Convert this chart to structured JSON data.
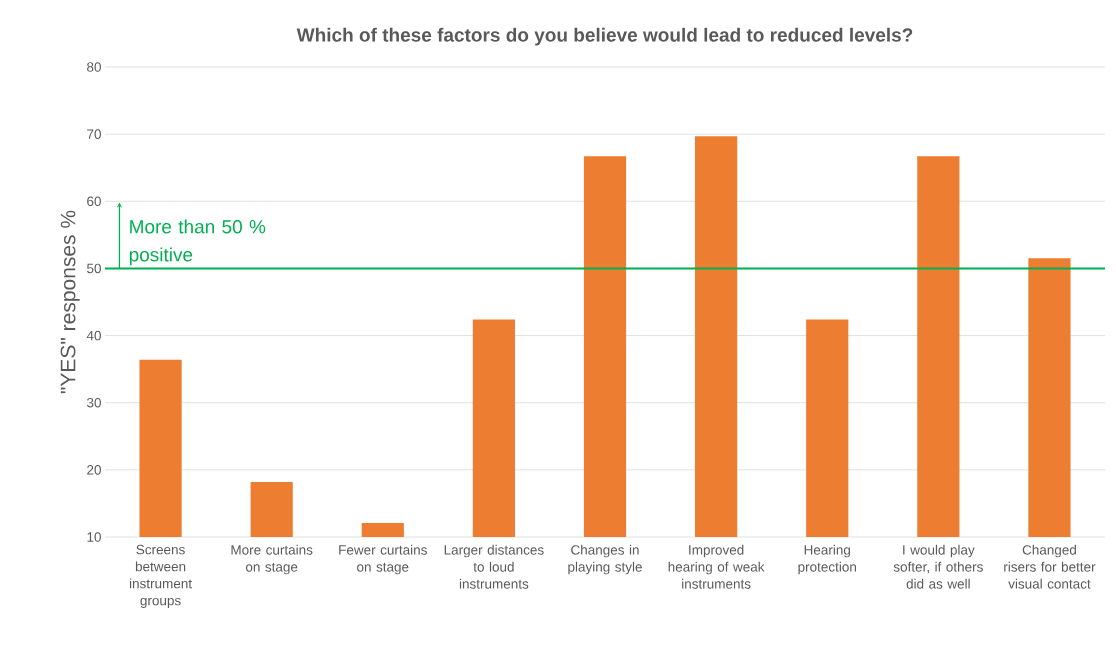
{
  "chart_data": {
    "type": "bar",
    "title": "Which of these factors do you believe would lead to reduced levels?",
    "ylabel": "\"YES\" responses %",
    "categories": [
      "Screens between instrument groups",
      "More curtains on stage",
      "Fewer curtains on stage",
      "Larger distances to loud instruments",
      "Changes in playing style",
      "Improved hearing of weak instruments",
      "Hearing protection",
      "I would play softer, if others did as well",
      "Changed risers for better visual contact"
    ],
    "values": [
      36.4,
      18.2,
      12.1,
      42.4,
      66.7,
      69.7,
      42.4,
      66.7,
      51.5
    ],
    "color": "#ed7d31",
    "ylim": [
      10,
      80
    ],
    "yticks": [
      10,
      20,
      30,
      40,
      50,
      60,
      70,
      80
    ],
    "grid": "y",
    "ref_lines": [
      {
        "axis": "y",
        "value": 50,
        "label": "More than 50 % positive",
        "color": "#00b050"
      }
    ]
  }
}
